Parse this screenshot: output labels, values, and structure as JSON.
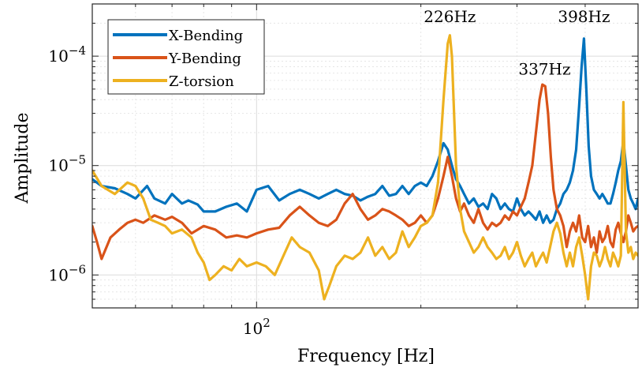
{
  "chart_data": {
    "type": "line",
    "xlabel": "Frequency [Hz]",
    "ylabel": "Amplitude",
    "xscale": "log",
    "yscale": "log",
    "xlim": [
      50,
      500
    ],
    "ylim": [
      5e-07,
      0.0003
    ],
    "grid": true,
    "legend_position": "top-left",
    "x_tick_labels": [
      {
        "value": 100,
        "base": "10",
        "exp": "2"
      }
    ],
    "y_tick_labels": [
      {
        "value": 0.0001,
        "base": "10",
        "exp": "−4"
      },
      {
        "value": 1e-05,
        "base": "10",
        "exp": "−5"
      },
      {
        "value": 1e-06,
        "base": "10",
        "exp": "−6"
      }
    ],
    "annotations": [
      {
        "text": "226Hz",
        "x": 226,
        "y": 0.000205
      },
      {
        "text": "398Hz",
        "x": 398,
        "y": 0.000205
      },
      {
        "text": "337Hz",
        "x": 337,
        "y": 6.8e-05
      }
    ],
    "series": [
      {
        "name": "X-Bending",
        "color": "#0072BD",
        "x": [
          50,
          52,
          55,
          58,
          60,
          63,
          65,
          68,
          70,
          73,
          75,
          78,
          80,
          84,
          88,
          92,
          96,
          100,
          105,
          110,
          115,
          120,
          125,
          130,
          135,
          140,
          145,
          150,
          155,
          160,
          165,
          170,
          175,
          180,
          185,
          190,
          195,
          200,
          205,
          210,
          215,
          220,
          224,
          228,
          232,
          236,
          240,
          245,
          250,
          255,
          260,
          265,
          270,
          275,
          280,
          285,
          290,
          295,
          300,
          305,
          310,
          315,
          320,
          325,
          330,
          335,
          340,
          345,
          350,
          355,
          360,
          365,
          370,
          375,
          380,
          385,
          390,
          394,
          398,
          402,
          406,
          410,
          415,
          420,
          425,
          430,
          435,
          440,
          445,
          450,
          455,
          460,
          465,
          470,
          475,
          480,
          485,
          490,
          495,
          500
        ],
        "y": [
          7.5e-06,
          6.5e-06,
          6.2e-06,
          5.5e-06,
          5e-06,
          6.5e-06,
          5e-06,
          4.5e-06,
          5.5e-06,
          4.5e-06,
          4.8e-06,
          4.4e-06,
          3.8e-06,
          3.8e-06,
          4.2e-06,
          4.5e-06,
          3.8e-06,
          6e-06,
          6.5e-06,
          4.8e-06,
          5.5e-06,
          6e-06,
          5.5e-06,
          5e-06,
          5.5e-06,
          6e-06,
          5.5e-06,
          5.3e-06,
          4.8e-06,
          5.2e-06,
          5.5e-06,
          6.5e-06,
          5.3e-06,
          5.5e-06,
          6.5e-06,
          5.5e-06,
          6.5e-06,
          7e-06,
          6.5e-06,
          8e-06,
          1.1e-05,
          1.6e-05,
          1.4e-05,
          1e-05,
          7.5e-06,
          6.5e-06,
          5.5e-06,
          4.5e-06,
          5e-06,
          4.2e-06,
          4.5e-06,
          4e-06,
          5.5e-06,
          5e-06,
          4e-06,
          4.5e-06,
          4e-06,
          3.8e-06,
          5e-06,
          4e-06,
          3.5e-06,
          3.8e-06,
          3.5e-06,
          3.2e-06,
          3.8e-06,
          3e-06,
          3.5e-06,
          3e-06,
          3.2e-06,
          4e-06,
          4.5e-06,
          5.5e-06,
          6e-06,
          7e-06,
          9e-06,
          1.4e-05,
          3.5e-05,
          8e-05,
          0.000145,
          5e-05,
          1.5e-05,
          8e-06,
          6e-06,
          5.5e-06,
          5e-06,
          5.5e-06,
          5e-06,
          4.5e-06,
          4.5e-06,
          5.5e-06,
          7e-06,
          9e-06,
          1.1e-05,
          1.7e-05,
          1e-05,
          6e-06,
          5e-06,
          4.5e-06,
          4e-06,
          5e-06
        ]
      },
      {
        "name": "Y-Bending",
        "color": "#D95319",
        "x": [
          50,
          51,
          52,
          54,
          56,
          58,
          60,
          62,
          65,
          68,
          70,
          73,
          76,
          80,
          84,
          88,
          92,
          96,
          100,
          105,
          110,
          115,
          120,
          125,
          130,
          135,
          140,
          145,
          150,
          155,
          160,
          165,
          170,
          175,
          180,
          185,
          190,
          195,
          200,
          205,
          210,
          215,
          220,
          224,
          228,
          232,
          236,
          240,
          245,
          250,
          255,
          260,
          265,
          270,
          275,
          280,
          285,
          290,
          295,
          300,
          305,
          310,
          315,
          320,
          325,
          330,
          334,
          338,
          342,
          346,
          350,
          355,
          360,
          365,
          370,
          375,
          380,
          385,
          390,
          395,
          400,
          405,
          410,
          415,
          420,
          425,
          430,
          435,
          440,
          445,
          450,
          455,
          460,
          465,
          470,
          475,
          480,
          485,
          490,
          495,
          500
        ],
        "y": [
          2.8e-06,
          2e-06,
          1.4e-06,
          2.2e-06,
          2.6e-06,
          3e-06,
          3.2e-06,
          3e-06,
          3.5e-06,
          3.2e-06,
          3.4e-06,
          3e-06,
          2.4e-06,
          2.8e-06,
          2.6e-06,
          2.2e-06,
          2.3e-06,
          2.2e-06,
          2.4e-06,
          2.6e-06,
          2.7e-06,
          3.5e-06,
          4.2e-06,
          3.5e-06,
          3e-06,
          2.8e-06,
          3.2e-06,
          4.5e-06,
          5.5e-06,
          4e-06,
          3.2e-06,
          3.5e-06,
          4e-06,
          3.8e-06,
          3.5e-06,
          3.2e-06,
          2.8e-06,
          3e-06,
          3.5e-06,
          3e-06,
          3.5e-06,
          5e-06,
          8e-06,
          1.2e-05,
          8e-06,
          5e-06,
          3.8e-06,
          4.5e-06,
          3.5e-06,
          3e-06,
          4e-06,
          3e-06,
          2.6e-06,
          3e-06,
          2.8e-06,
          3e-06,
          3.5e-06,
          3.2e-06,
          3.8e-06,
          3.5e-06,
          4.2e-06,
          5e-06,
          7e-06,
          1e-05,
          2e-05,
          4e-05,
          5.5e-05,
          5.3e-05,
          3e-05,
          1.2e-05,
          6e-06,
          4e-06,
          3.5e-06,
          2.8e-06,
          1.8e-06,
          2.5e-06,
          3e-06,
          2.5e-06,
          3.5e-06,
          2.2e-06,
          2e-06,
          2.8e-06,
          1.8e-06,
          2.2e-06,
          1.6e-06,
          2.5e-06,
          2e-06,
          2.2e-06,
          2.8e-06,
          2e-06,
          1.8e-06,
          2.6e-06,
          3e-06,
          2.4e-06,
          2e-06,
          2.5e-06,
          3.5e-06,
          3e-06,
          2.5e-06,
          2.7e-06,
          2.8e-06
        ]
      },
      {
        "name": "Z-torsion",
        "color": "#EDB120",
        "x": [
          50,
          52,
          55,
          58,
          60,
          62,
          64,
          66,
          68,
          70,
          73,
          76,
          78,
          80,
          82,
          84,
          87,
          90,
          93,
          96,
          100,
          104,
          108,
          112,
          116,
          120,
          125,
          130,
          133,
          136,
          140,
          145,
          150,
          155,
          160,
          165,
          170,
          175,
          180,
          185,
          190,
          195,
          200,
          205,
          210,
          215,
          220,
          224,
          226,
          228,
          232,
          236,
          240,
          245,
          250,
          255,
          260,
          265,
          270,
          275,
          280,
          285,
          290,
          295,
          300,
          305,
          310,
          315,
          320,
          325,
          330,
          335,
          340,
          345,
          350,
          355,
          360,
          365,
          370,
          375,
          380,
          385,
          390,
          395,
          400,
          405,
          410,
          415,
          420,
          425,
          430,
          435,
          440,
          445,
          450,
          455,
          460,
          465,
          470,
          475,
          480,
          485,
          490,
          495,
          500
        ],
        "y": [
          9e-06,
          6.5e-06,
          5.5e-06,
          7e-06,
          6.5e-06,
          5e-06,
          3.2e-06,
          3e-06,
          2.8e-06,
          2.4e-06,
          2.6e-06,
          2.2e-06,
          1.6e-06,
          1.3e-06,
          9e-07,
          1e-06,
          1.2e-06,
          1.1e-06,
          1.4e-06,
          1.2e-06,
          1.3e-06,
          1.2e-06,
          1e-06,
          1.5e-06,
          2.2e-06,
          1.8e-06,
          1.6e-06,
          1.1e-06,
          6e-07,
          8e-07,
          1.2e-06,
          1.5e-06,
          1.4e-06,
          1.6e-06,
          2.2e-06,
          1.5e-06,
          1.8e-06,
          1.4e-06,
          1.6e-06,
          2.5e-06,
          1.8e-06,
          2.2e-06,
          2.8e-06,
          3e-06,
          3.5e-06,
          7e-06,
          4e-05,
          0.00013,
          0.000155,
          0.0001,
          1e-05,
          4e-06,
          2.5e-06,
          2e-06,
          1.6e-06,
          1.8e-06,
          2.2e-06,
          1.8e-06,
          1.6e-06,
          1.4e-06,
          1.5e-06,
          1.8e-06,
          1.4e-06,
          1.6e-06,
          2e-06,
          1.5e-06,
          1.2e-06,
          1.4e-06,
          1.6e-06,
          1.2e-06,
          1.4e-06,
          1.6e-06,
          1.3e-06,
          1.8e-06,
          2.5e-06,
          3e-06,
          2.4e-06,
          1.6e-06,
          1.2e-06,
          1.6e-06,
          1.2e-06,
          1.8e-06,
          2.2e-06,
          1.5e-06,
          1e-06,
          6e-07,
          1.2e-06,
          1.6e-06,
          1.5e-06,
          1.2e-06,
          1.4e-06,
          1.8e-06,
          1.4e-06,
          1.2e-06,
          1.6e-06,
          1.4e-06,
          1.2e-06,
          1.5e-06,
          3.8e-05,
          2.5e-06,
          1.6e-06,
          1.8e-06,
          1.4e-06,
          1.6e-06,
          1.5e-06
        ]
      }
    ]
  }
}
